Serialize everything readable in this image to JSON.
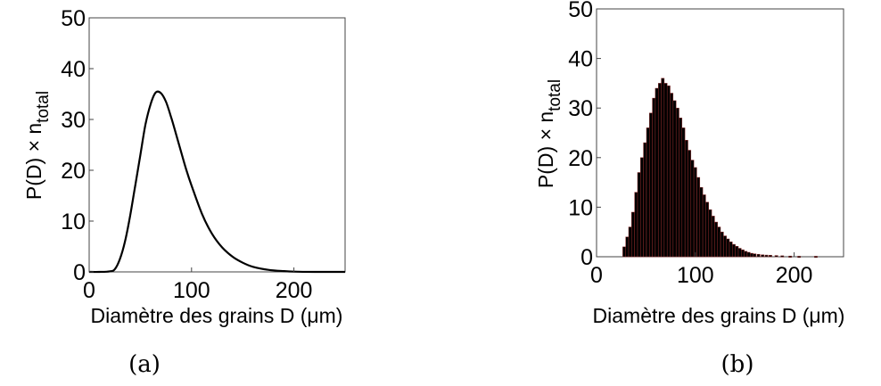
{
  "chart_data": [
    {
      "panel": "(a)",
      "type": "line",
      "xlabel": "Diamètre des grains D (μm)",
      "ylabel": "P(D) × n",
      "ylabel_sub": "total",
      "xlim": [
        0,
        250
      ],
      "ylim": [
        0,
        50
      ],
      "xticks": [
        "0",
        "100",
        "200"
      ],
      "yticks": [
        "0",
        "10",
        "20",
        "30",
        "40",
        "50"
      ],
      "grid": false,
      "series": [
        {
          "x": [
            0,
            10,
            20,
            25,
            30,
            35,
            40,
            45,
            50,
            55,
            60,
            65,
            70,
            75,
            80,
            85,
            90,
            95,
            100,
            110,
            120,
            130,
            140,
            150,
            160,
            175,
            190,
            200,
            220,
            250
          ],
          "y": [
            0,
            0,
            0.1,
            0.5,
            2.5,
            6,
            11,
            17,
            23,
            29,
            33,
            35.3,
            35.2,
            33.5,
            30.5,
            27,
            23.5,
            20,
            17,
            11.5,
            7.5,
            4.8,
            3,
            1.8,
            1,
            0.4,
            0.15,
            0.05,
            0,
            0
          ]
        }
      ]
    },
    {
      "panel": "(b)",
      "type": "bar",
      "xlabel": "Diamètre des grains D (μm)",
      "ylabel": "P(D) × n",
      "ylabel_sub": "total",
      "xlim": [
        0,
        250
      ],
      "ylim": [
        0,
        50
      ],
      "xticks": [
        "0",
        "100",
        "200"
      ],
      "yticks": [
        "0",
        "10",
        "20",
        "30",
        "40",
        "50"
      ],
      "grid": false,
      "bar_fill": "#000000",
      "bar_edge": "#8b2a2a",
      "bins": [
        [
          28,
          2
        ],
        [
          31,
          4
        ],
        [
          34,
          6
        ],
        [
          37,
          9
        ],
        [
          40,
          13
        ],
        [
          43,
          17
        ],
        [
          46,
          20
        ],
        [
          49,
          23
        ],
        [
          52,
          26
        ],
        [
          55,
          29
        ],
        [
          58,
          32
        ],
        [
          61,
          34
        ],
        [
          64,
          35
        ],
        [
          67,
          36
        ],
        [
          70,
          35
        ],
        [
          73,
          34.5
        ],
        [
          76,
          33
        ],
        [
          79,
          31.5
        ],
        [
          82,
          30
        ],
        [
          85,
          28
        ],
        [
          88,
          26
        ],
        [
          91,
          23.5
        ],
        [
          94,
          21.5
        ],
        [
          97,
          19.5
        ],
        [
          100,
          18
        ],
        [
          103,
          16
        ],
        [
          106,
          14
        ],
        [
          109,
          12.5
        ],
        [
          112,
          11
        ],
        [
          115,
          9.5
        ],
        [
          118,
          8.2
        ],
        [
          121,
          7
        ],
        [
          124,
          6
        ],
        [
          127,
          5
        ],
        [
          130,
          4.2
        ],
        [
          133,
          3.6
        ],
        [
          136,
          3
        ],
        [
          139,
          2.5
        ],
        [
          142,
          2.1
        ],
        [
          145,
          1.7
        ],
        [
          148,
          1.4
        ],
        [
          151,
          1.1
        ],
        [
          154,
          0.9
        ],
        [
          157,
          0.7
        ],
        [
          160,
          0.6
        ],
        [
          164,
          0.5
        ],
        [
          168,
          0.4
        ],
        [
          172,
          0.35
        ],
        [
          176,
          0.3
        ],
        [
          182,
          0.25
        ],
        [
          188,
          0.2
        ],
        [
          196,
          0.15
        ],
        [
          205,
          0.1
        ],
        [
          222,
          0.1
        ]
      ]
    }
  ],
  "captions": {
    "a": "(a)",
    "b": "(b)"
  }
}
